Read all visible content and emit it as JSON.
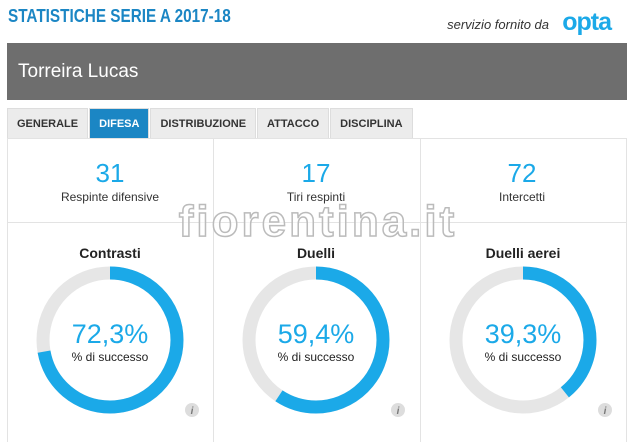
{
  "header": {
    "title": "STATISTICHE SERIE A 2017-18",
    "provider_text": "servizio fornito da",
    "provider_logo": "opta"
  },
  "player": {
    "name": "Torreira Lucas"
  },
  "tabs": [
    {
      "label": "GENERALE",
      "active": false
    },
    {
      "label": "DIFESA",
      "active": true
    },
    {
      "label": "DISTRIBUZIONE",
      "active": false
    },
    {
      "label": "ATTACCO",
      "active": false
    },
    {
      "label": "DISCIPLINA",
      "active": false
    }
  ],
  "stats": [
    {
      "value": 31,
      "label": "Respinte difensive"
    },
    {
      "value": 17,
      "label": "Tiri respinti"
    },
    {
      "value": 72,
      "label": "Intercetti"
    }
  ],
  "donuts": [
    {
      "title": "Contrasti",
      "value": 72.3,
      "label": "72,3%",
      "caption": "% di successo"
    },
    {
      "title": "Duelli",
      "value": 59.4,
      "label": "59,4%",
      "caption": "% di successo"
    },
    {
      "title": "Duelli aerei",
      "value": 39.3,
      "label": "39,3%",
      "caption": "% di successo"
    }
  ],
  "info_icon": "i",
  "watermark": "fiorentina.it"
}
